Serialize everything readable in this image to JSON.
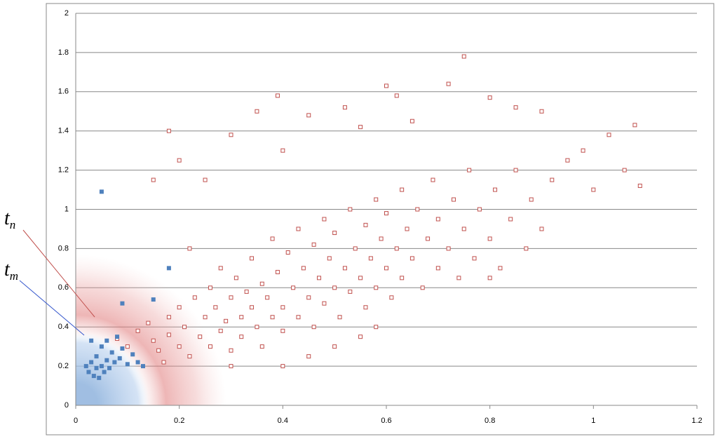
{
  "chart_data": {
    "type": "scatter",
    "xlim": [
      0,
      1.2
    ],
    "xticks": [
      0,
      0.2,
      0.4,
      0.6,
      0.8,
      1,
      1.2
    ],
    "ylim": [
      0,
      2
    ],
    "yticks": [
      0,
      0.2,
      0.4,
      0.6,
      0.8,
      1,
      1.2,
      1.4,
      1.6,
      1.8,
      2
    ],
    "grid": true,
    "annotations": [
      {
        "text": "t",
        "sub": "n"
      },
      {
        "text": "t",
        "sub": "m"
      }
    ],
    "series": [
      {
        "color": "#c0504d",
        "marker": "hollow-square",
        "x": [
          0.08,
          0.1,
          0.12,
          0.14,
          0.15,
          0.16,
          0.18,
          0.18,
          0.2,
          0.2,
          0.21,
          0.22,
          0.23,
          0.24,
          0.25,
          0.26,
          0.26,
          0.27,
          0.28,
          0.28,
          0.29,
          0.3,
          0.3,
          0.31,
          0.32,
          0.32,
          0.33,
          0.34,
          0.34,
          0.35,
          0.36,
          0.36,
          0.37,
          0.38,
          0.38,
          0.39,
          0.4,
          0.4,
          0.41,
          0.42,
          0.43,
          0.43,
          0.44,
          0.45,
          0.46,
          0.46,
          0.47,
          0.48,
          0.48,
          0.49,
          0.5,
          0.5,
          0.51,
          0.52,
          0.53,
          0.53,
          0.54,
          0.55,
          0.56,
          0.56,
          0.57,
          0.58,
          0.58,
          0.59,
          0.6,
          0.6,
          0.61,
          0.62,
          0.63,
          0.63,
          0.64,
          0.65,
          0.66,
          0.67,
          0.68,
          0.69,
          0.7,
          0.7,
          0.72,
          0.73,
          0.74,
          0.75,
          0.76,
          0.77,
          0.78,
          0.8,
          0.81,
          0.82,
          0.84,
          0.85,
          0.87,
          0.88,
          0.9,
          0.92,
          0.95,
          0.98,
          1.0,
          1.03,
          1.06,
          1.08,
          1.09,
          0.18,
          0.2,
          0.25,
          0.3,
          0.35,
          0.39,
          0.45,
          0.52,
          0.6,
          0.62,
          0.72,
          0.75,
          0.8,
          0.85,
          0.9,
          0.65,
          0.55,
          0.4,
          0.15,
          0.22,
          0.3,
          0.4,
          0.5,
          0.58,
          0.45,
          0.55,
          0.8,
          0.17
        ],
        "y": [
          0.34,
          0.3,
          0.38,
          0.42,
          0.33,
          0.28,
          0.45,
          0.36,
          0.3,
          0.5,
          0.4,
          0.25,
          0.55,
          0.35,
          0.45,
          0.6,
          0.3,
          0.5,
          0.38,
          0.7,
          0.43,
          0.55,
          0.28,
          0.65,
          0.45,
          0.35,
          0.58,
          0.75,
          0.5,
          0.4,
          0.62,
          0.3,
          0.55,
          0.85,
          0.45,
          0.68,
          0.5,
          0.38,
          0.78,
          0.6,
          0.9,
          0.45,
          0.7,
          0.55,
          0.82,
          0.4,
          0.65,
          0.95,
          0.52,
          0.75,
          0.6,
          0.88,
          0.45,
          0.7,
          1.0,
          0.58,
          0.8,
          0.65,
          0.92,
          0.5,
          0.75,
          1.05,
          0.6,
          0.85,
          0.7,
          0.98,
          0.55,
          0.8,
          1.1,
          0.65,
          0.9,
          0.75,
          1.0,
          0.6,
          0.85,
          1.15,
          0.7,
          0.95,
          0.8,
          1.05,
          0.65,
          0.9,
          1.2,
          0.75,
          1.0,
          0.85,
          1.1,
          0.7,
          0.95,
          1.2,
          0.8,
          1.05,
          0.9,
          1.15,
          1.25,
          1.3,
          1.1,
          1.38,
          1.2,
          1.43,
          1.12,
          1.4,
          1.25,
          1.15,
          1.38,
          1.5,
          1.58,
          1.48,
          1.52,
          1.63,
          1.58,
          1.64,
          1.78,
          1.57,
          1.52,
          1.5,
          1.45,
          1.42,
          1.3,
          1.15,
          0.8,
          0.2,
          0.2,
          0.3,
          0.4,
          0.25,
          0.35,
          0.65,
          0.22
        ]
      },
      {
        "color": "#4f81bd",
        "marker": "filled-square",
        "x": [
          0.02,
          0.025,
          0.03,
          0.035,
          0.04,
          0.04,
          0.045,
          0.05,
          0.05,
          0.055,
          0.06,
          0.06,
          0.065,
          0.07,
          0.075,
          0.08,
          0.085,
          0.09,
          0.1,
          0.11,
          0.12,
          0.13,
          0.15,
          0.18,
          0.05,
          0.09,
          0.03
        ],
        "y": [
          0.2,
          0.17,
          0.22,
          0.15,
          0.19,
          0.25,
          0.14,
          0.2,
          0.3,
          0.17,
          0.23,
          0.33,
          0.19,
          0.27,
          0.22,
          0.35,
          0.24,
          0.29,
          0.21,
          0.26,
          0.22,
          0.2,
          0.54,
          0.7,
          1.09,
          0.52,
          0.33
        ]
      }
    ]
  }
}
